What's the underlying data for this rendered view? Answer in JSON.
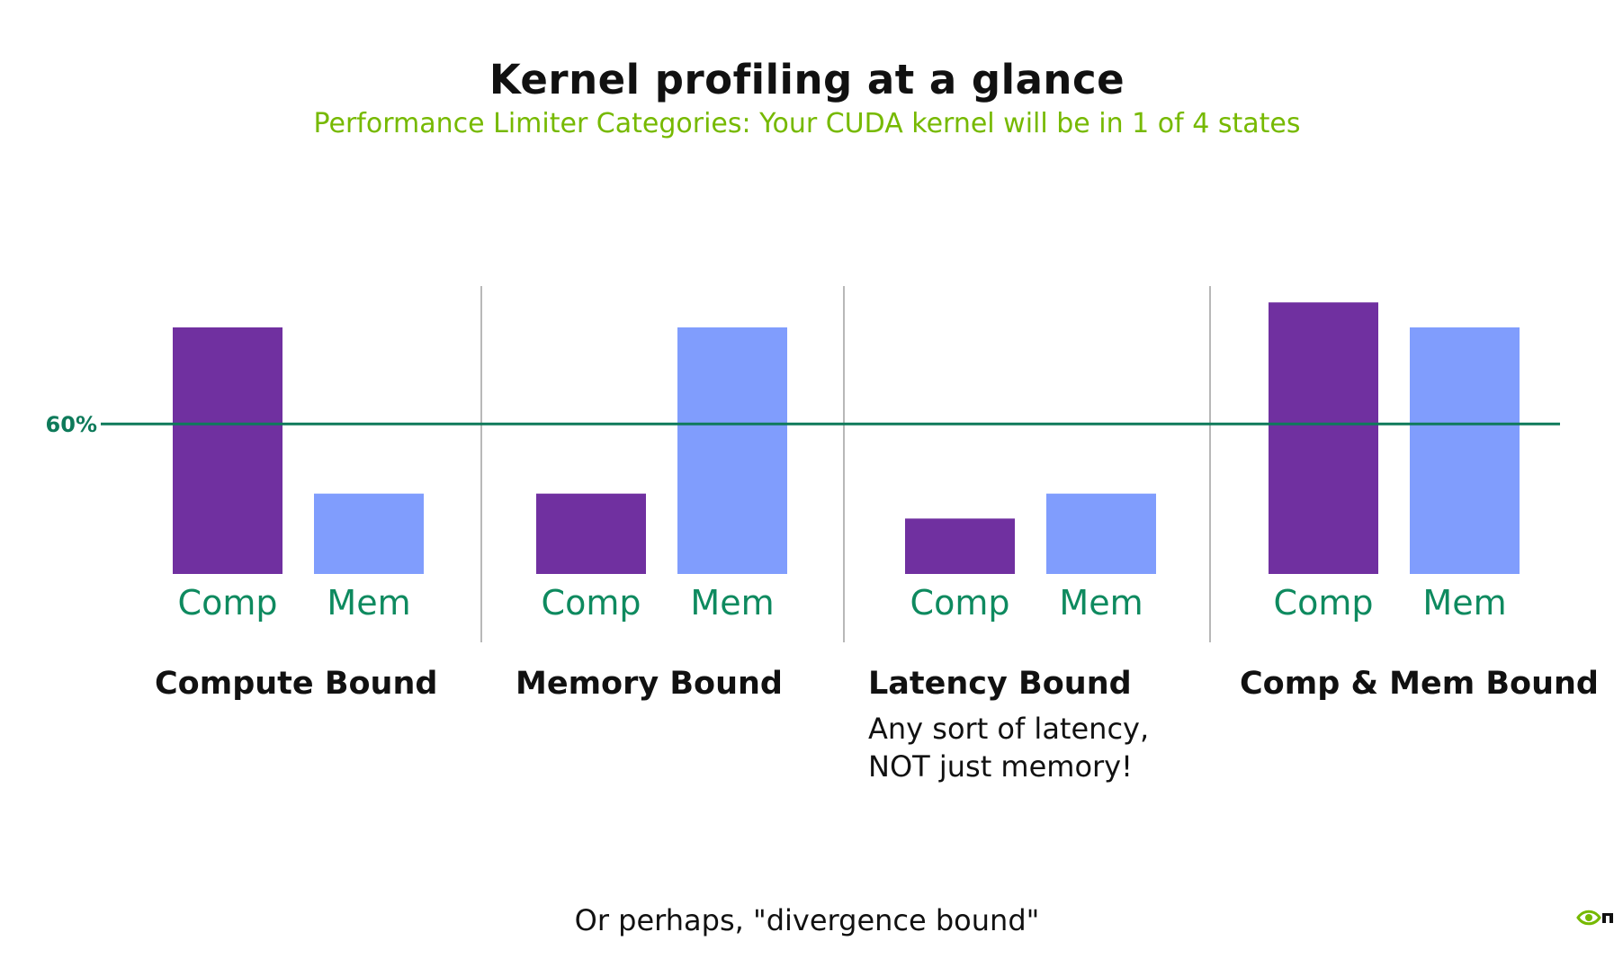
{
  "title": "Kernel profiling at a glance",
  "subtitle": "Performance Limiter Categories: Your CUDA kernel will be in 1 of 4 states",
  "chart_data": {
    "type": "bar",
    "threshold": {
      "label": "60%",
      "value": 60,
      "color": "#0e7a5a"
    },
    "ylim": [
      0,
      100
    ],
    "bar_labels": {
      "comp": "Comp",
      "mem": "Mem"
    },
    "colors": {
      "comp": "#7030a0",
      "mem": "#809dfd",
      "label": "#0e8a5f"
    },
    "groups": [
      {
        "category": "Compute Bound",
        "note": [],
        "comp": 89,
        "mem": 29
      },
      {
        "category": "Memory Bound",
        "note": [],
        "comp": 29,
        "mem": 89
      },
      {
        "category": "Latency Bound",
        "note": [
          "Any sort of latency,",
          "NOT just memory!"
        ],
        "comp": 20,
        "mem": 29
      },
      {
        "category": "Comp & Mem Bound",
        "note": [],
        "comp": 98,
        "mem": 89
      }
    ],
    "grid": false,
    "legend": "none"
  },
  "footer": "Or perhaps, \"divergence bound\"",
  "brand": {
    "icon": "nvidia-logo-icon",
    "color": "#76b900"
  }
}
